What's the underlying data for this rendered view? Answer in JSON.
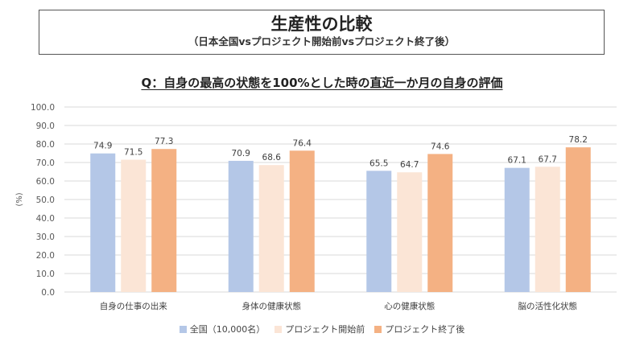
{
  "title": {
    "main": "生産性の比較",
    "sub": "（日本全国vsプロジェクト開始前vsプロジェクト終了後）"
  },
  "question": "Q：自身の最高の状態を100%とした時の直近一か月の自身の評価",
  "colors": {
    "series_0": "#b4c7e7",
    "series_1": "#fbe5d6",
    "series_2": "#f4b183",
    "grid": "#d9d9d9",
    "axis_text": "#595959"
  },
  "chart_data": {
    "type": "bar",
    "title": "Q：自身の最高の状態を100%とした時の直近一か月の自身の評価",
    "xlabel": "",
    "ylabel": "(%)",
    "ylim": [
      0,
      100
    ],
    "ytick_step": 10,
    "yticks": [
      "0.0",
      "10.0",
      "20.0",
      "30.0",
      "40.0",
      "50.0",
      "60.0",
      "70.0",
      "80.0",
      "90.0",
      "100.0"
    ],
    "grid": true,
    "legend_position": "bottom",
    "categories": [
      "自身の仕事の出来",
      "身体の健康状態",
      "心の健康状態",
      "脳の活性化状態"
    ],
    "series": [
      {
        "name": "全国（10,000名）",
        "values": [
          74.9,
          70.9,
          65.5,
          67.1
        ]
      },
      {
        "name": "プロジェクト開始前",
        "values": [
          71.5,
          68.6,
          64.7,
          67.7
        ]
      },
      {
        "name": "プロジェクト終了後",
        "values": [
          77.3,
          76.4,
          74.6,
          78.2
        ]
      }
    ]
  }
}
